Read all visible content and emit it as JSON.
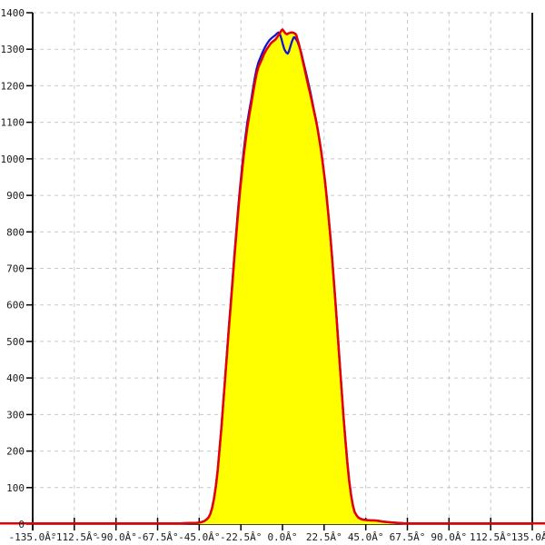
{
  "chart_data": {
    "type": "area",
    "description": "Angle distribution histogram: yellow-filled area with red outline and a second blue line series, sharp peak near 0 degrees reaching about 1354 counts",
    "grid": true,
    "legend": "none",
    "xlim": [
      -135,
      135
    ],
    "ylim": [
      0,
      1400
    ],
    "x_axis": {
      "tick_values": [
        -135,
        -112.5,
        -90,
        -67.5,
        -45,
        -22.5,
        0,
        22.5,
        45,
        67.5,
        90,
        112.5,
        135
      ],
      "tick_labels": [
        "-135.0Â°",
        "-112.5Â°",
        "-90.0Â°",
        "-67.5Â°",
        "-45.0Â°",
        "-22.5Â°",
        "0.0Â°",
        "22.5Â°",
        "45.0Â°",
        "67.5Â°",
        "90.0Â°",
        "112.5Â°",
        "135.0Â°"
      ]
    },
    "y_axis": {
      "tick_values": [
        0,
        100,
        200,
        300,
        400,
        500,
        600,
        700,
        800,
        900,
        1000,
        1100,
        1200,
        1300,
        1400
      ],
      "tick_labels": [
        "0",
        "100",
        "200",
        "300",
        "400",
        "500",
        "600",
        "700",
        "800",
        "900",
        "1000",
        "1100",
        "1200",
        "1300",
        "1400"
      ]
    },
    "colors": {
      "area_fill": "#ffff00",
      "red_line": "#e60000",
      "blue_line": "#1414cc",
      "grid_line": "#c9c9c9",
      "axis_line": "#000000",
      "tick_text": "#1a1a1a",
      "background": "#ffffff"
    },
    "series": [
      {
        "name": "filled-distribution-red",
        "type": "area",
        "line_color": "#e60000",
        "fill_color": "#ffff00",
        "points": [
          [
            -152.8,
            2
          ],
          [
            -100,
            2
          ],
          [
            -70,
            2
          ],
          [
            -55,
            2
          ],
          [
            -50,
            3
          ],
          [
            -47,
            3
          ],
          [
            -45,
            4
          ],
          [
            -43.5,
            6
          ],
          [
            -42,
            9
          ],
          [
            -41,
            13
          ],
          [
            -40,
            18
          ],
          [
            -39,
            28
          ],
          [
            -38,
            45
          ],
          [
            -37,
            70
          ],
          [
            -36,
            105
          ],
          [
            -35,
            148
          ],
          [
            -34,
            205
          ],
          [
            -33,
            265
          ],
          [
            -32,
            332
          ],
          [
            -31,
            400
          ],
          [
            -30,
            466
          ],
          [
            -29,
            533
          ],
          [
            -28,
            598
          ],
          [
            -27,
            662
          ],
          [
            -26,
            728
          ],
          [
            -25,
            792
          ],
          [
            -24,
            852
          ],
          [
            -23,
            908
          ],
          [
            -22,
            958
          ],
          [
            -21,
            1006
          ],
          [
            -20,
            1048
          ],
          [
            -19,
            1086
          ],
          [
            -18,
            1117
          ],
          [
            -17,
            1147
          ],
          [
            -16,
            1177
          ],
          [
            -15,
            1206
          ],
          [
            -14,
            1233
          ],
          [
            -13,
            1251
          ],
          [
            -12,
            1263
          ],
          [
            -11,
            1274
          ],
          [
            -10,
            1286
          ],
          [
            -9,
            1296
          ],
          [
            -8,
            1304
          ],
          [
            -7,
            1311
          ],
          [
            -6.5,
            1315
          ],
          [
            -6,
            1318
          ],
          [
            -5,
            1322
          ],
          [
            -4,
            1326
          ],
          [
            -3,
            1332
          ],
          [
            -2,
            1339
          ],
          [
            -1,
            1348
          ],
          [
            -0.5,
            1352
          ],
          [
            0,
            1354
          ],
          [
            0.5,
            1351
          ],
          [
            1,
            1347
          ],
          [
            1.5,
            1344
          ],
          [
            2,
            1342
          ],
          [
            2.5,
            1341
          ],
          [
            3,
            1343
          ],
          [
            4,
            1345
          ],
          [
            5,
            1346
          ],
          [
            6,
            1345
          ],
          [
            7,
            1342
          ],
          [
            7.5,
            1338
          ],
          [
            8,
            1329
          ],
          [
            9,
            1312
          ],
          [
            10,
            1290
          ],
          [
            11,
            1267
          ],
          [
            12,
            1245
          ],
          [
            13,
            1221
          ],
          [
            14,
            1199
          ],
          [
            15,
            1177
          ],
          [
            16,
            1154
          ],
          [
            17,
            1131
          ],
          [
            18,
            1107
          ],
          [
            19,
            1081
          ],
          [
            20,
            1051
          ],
          [
            21,
            1017
          ],
          [
            22,
            979
          ],
          [
            23,
            937
          ],
          [
            24,
            889
          ],
          [
            25,
            837
          ],
          [
            26,
            779
          ],
          [
            27,
            717
          ],
          [
            28,
            651
          ],
          [
            29,
            581
          ],
          [
            30,
            509
          ],
          [
            31,
            437
          ],
          [
            32,
            364
          ],
          [
            33,
            294
          ],
          [
            34,
            229
          ],
          [
            35,
            171
          ],
          [
            36,
            121
          ],
          [
            37,
            81
          ],
          [
            38,
            52
          ],
          [
            39,
            33
          ],
          [
            40,
            24
          ],
          [
            41,
            18
          ],
          [
            42,
            15
          ],
          [
            43,
            13
          ],
          [
            44,
            12
          ],
          [
            46,
            11
          ],
          [
            48,
            10
          ],
          [
            50,
            10
          ],
          [
            52,
            9
          ],
          [
            54,
            7
          ],
          [
            56,
            6
          ],
          [
            58,
            5
          ],
          [
            60,
            4
          ],
          [
            63,
            3
          ],
          [
            66,
            2
          ],
          [
            80,
            2
          ],
          [
            110,
            2
          ],
          [
            145.5,
            2
          ]
        ]
      },
      {
        "name": "distribution-line-blue",
        "type": "line",
        "line_color": "#1414cc",
        "fill_color": null,
        "points": [
          [
            -152.8,
            2
          ],
          [
            -100,
            2
          ],
          [
            -70,
            2
          ],
          [
            -55,
            2
          ],
          [
            -50,
            3
          ],
          [
            -47,
            3
          ],
          [
            -45,
            4
          ],
          [
            -43.5,
            6
          ],
          [
            -42,
            9
          ],
          [
            -41,
            13
          ],
          [
            -40,
            18
          ],
          [
            -39,
            28
          ],
          [
            -38,
            45
          ],
          [
            -37,
            70
          ],
          [
            -36,
            105
          ],
          [
            -35,
            148
          ],
          [
            -34,
            205
          ],
          [
            -33,
            265
          ],
          [
            -32,
            332
          ],
          [
            -31,
            402
          ],
          [
            -30,
            470
          ],
          [
            -29,
            538
          ],
          [
            -28,
            604
          ],
          [
            -27,
            670
          ],
          [
            -26,
            736
          ],
          [
            -25,
            800
          ],
          [
            -24,
            862
          ],
          [
            -23,
            918
          ],
          [
            -22,
            970
          ],
          [
            -21,
            1020
          ],
          [
            -20,
            1062
          ],
          [
            -19,
            1100
          ],
          [
            -18,
            1130
          ],
          [
            -17,
            1159
          ],
          [
            -16,
            1190
          ],
          [
            -15,
            1220
          ],
          [
            -14,
            1246
          ],
          [
            -13,
            1264
          ],
          [
            -12,
            1277
          ],
          [
            -11,
            1289
          ],
          [
            -10,
            1300
          ],
          [
            -9,
            1310
          ],
          [
            -8,
            1318
          ],
          [
            -7,
            1325
          ],
          [
            -6,
            1330
          ],
          [
            -5,
            1334
          ],
          [
            -4,
            1338
          ],
          [
            -3,
            1343
          ],
          [
            -2.5,
            1345
          ],
          [
            -2,
            1346
          ],
          [
            -1.5,
            1343
          ],
          [
            -1,
            1335
          ],
          [
            -0.5,
            1327
          ],
          [
            0,
            1317
          ],
          [
            1,
            1300
          ],
          [
            2,
            1291
          ],
          [
            2.8,
            1288
          ],
          [
            3.5,
            1294
          ],
          [
            4,
            1303
          ],
          [
            5,
            1320
          ],
          [
            6,
            1332
          ],
          [
            6.5,
            1333
          ],
          [
            7,
            1330
          ],
          [
            8,
            1322
          ],
          [
            9,
            1309
          ],
          [
            10,
            1293
          ],
          [
            11,
            1272
          ],
          [
            12,
            1251
          ],
          [
            13,
            1229
          ],
          [
            14,
            1207
          ],
          [
            15,
            1184
          ],
          [
            16,
            1159
          ],
          [
            17,
            1134
          ],
          [
            18,
            1109
          ],
          [
            19,
            1082
          ],
          [
            20,
            1051
          ],
          [
            21,
            1017
          ],
          [
            22,
            979
          ],
          [
            23,
            937
          ],
          [
            24,
            889
          ],
          [
            25,
            837
          ],
          [
            26,
            779
          ],
          [
            27,
            717
          ],
          [
            28,
            651
          ],
          [
            29,
            581
          ],
          [
            30,
            509
          ],
          [
            31,
            437
          ],
          [
            32,
            364
          ],
          [
            33,
            294
          ],
          [
            34,
            229
          ],
          [
            35,
            171
          ],
          [
            36,
            121
          ],
          [
            37,
            81
          ],
          [
            38,
            52
          ],
          [
            39,
            33
          ],
          [
            40,
            24
          ],
          [
            41,
            18
          ],
          [
            43,
            13
          ],
          [
            46,
            11
          ],
          [
            50,
            10
          ],
          [
            54,
            7
          ],
          [
            58,
            5
          ],
          [
            63,
            3
          ],
          [
            66,
            2
          ],
          [
            110,
            2
          ],
          [
            145.5,
            2
          ]
        ]
      }
    ]
  }
}
